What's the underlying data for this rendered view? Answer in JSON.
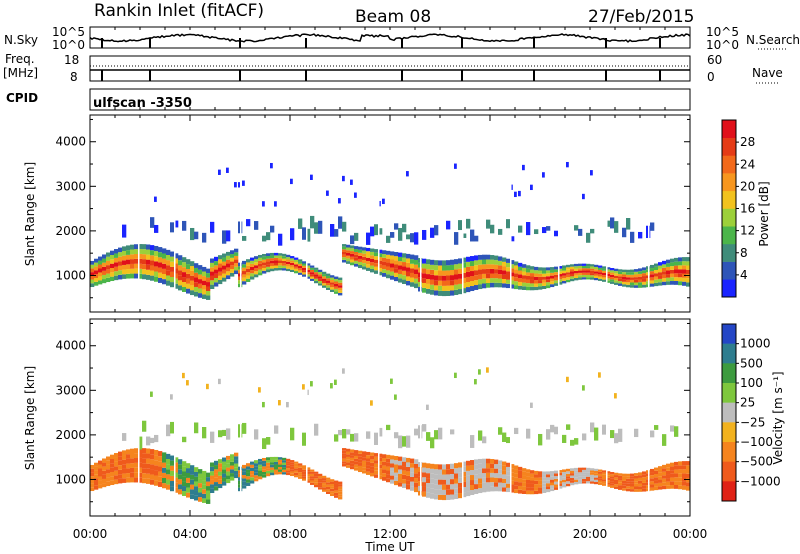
{
  "header": {
    "station": "Rankin Inlet (fitACF)",
    "beam": "Beam 08",
    "date": "27/Feb/2015"
  },
  "noise_panel": {
    "left_label": "N.Sky",
    "right_label": "N.Search",
    "left_ticks": [
      "10^5",
      "10^0"
    ],
    "right_ticks": [
      "10^5",
      "10^0"
    ]
  },
  "freq_panel": {
    "left_label_line1": "Freq.",
    "left_label_line2": "[MHz]",
    "left_ticks": [
      "18",
      "8"
    ],
    "right_label": "Nave",
    "right_ticks": [
      "60",
      "0"
    ]
  },
  "cpid_panel": {
    "label": "CPID",
    "value": "ulfscan -3350"
  },
  "chart_data": [
    {
      "type": "heatmap",
      "title": "Power",
      "ylabel": "Slant Range [km]",
      "xlabel": "",
      "ylim": [
        180,
        4600
      ],
      "y_ticks": [
        "1000",
        "2000",
        "3000",
        "4000"
      ],
      "x_ticks": [
        "00:00",
        "04:00",
        "08:00",
        "12:00",
        "16:00",
        "20:00",
        "00:00"
      ],
      "colorbar": {
        "label": "Power [dB]",
        "ticks": [
          "4",
          "8",
          "12",
          "16",
          "20",
          "24",
          "28"
        ],
        "colors": [
          "#1a24ff",
          "#2e55b8",
          "#3f8c7a",
          "#4bb54a",
          "#9cd03a",
          "#f2c21e",
          "#f7961e",
          "#f2691a",
          "#e53b16",
          "#e0101a"
        ]
      }
    },
    {
      "type": "heatmap",
      "title": "Velocity",
      "ylabel": "Slant Range [km]",
      "xlabel": "Time UT",
      "ylim": [
        180,
        4600
      ],
      "y_ticks": [
        "1000",
        "2000",
        "3000",
        "4000"
      ],
      "x_ticks": [
        "00:00",
        "04:00",
        "08:00",
        "12:00",
        "16:00",
        "20:00",
        "00:00"
      ],
      "colorbar": {
        "label": "Velocity [m s⁻¹]",
        "ticks": [
          "1000",
          "500",
          "100",
          "25",
          "−25",
          "−100",
          "−500",
          "−1000"
        ],
        "colors": [
          "#2446c6",
          "#2e7d8f",
          "#3d9b3f",
          "#7ec73d",
          "#bdbdbd",
          "#f2b21e",
          "#f5841e",
          "#ef5a1c",
          "#e02216"
        ]
      }
    }
  ]
}
